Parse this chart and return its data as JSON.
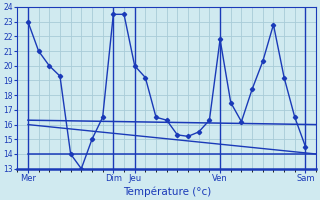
{
  "title": "Température (°c)",
  "background_color": "#d0eaf0",
  "grid_color": "#a8ccd8",
  "line_color": "#1a3ab8",
  "ylim": [
    13,
    24
  ],
  "yticks": [
    13,
    14,
    15,
    16,
    17,
    18,
    19,
    20,
    21,
    22,
    23,
    24
  ],
  "xlim": [
    0,
    28
  ],
  "x_major_ticks": [
    1,
    9,
    11,
    19,
    27
  ],
  "x_major_labels": [
    "Mer",
    "Dim",
    "Jeu",
    "Ven",
    "Sam"
  ],
  "num_minor_cols": 28,
  "series1_x": [
    1,
    2,
    3,
    4,
    5,
    6,
    7,
    8,
    9,
    10,
    11,
    12,
    13,
    14,
    15,
    16,
    17,
    18,
    19,
    20,
    21,
    22,
    23,
    24,
    25,
    26,
    27
  ],
  "series1_y": [
    23,
    21,
    20.0,
    19.3,
    14.0,
    13.0,
    15.0,
    16.5,
    23.5,
    23.5,
    20.0,
    19.2,
    16.5,
    16.3,
    15.3,
    15.2,
    15.5,
    16.3,
    21.8,
    17.5,
    16.2,
    18.4,
    20.3,
    22.8,
    19.2,
    16.5,
    14.5
  ],
  "series2_x": [
    1,
    28
  ],
  "series2_y": [
    16.3,
    16.0
  ],
  "series3_x": [
    1,
    28
  ],
  "series3_y": [
    16.0,
    14.0
  ],
  "series4_x": [
    1,
    28
  ],
  "series4_y": [
    14.0,
    14.0
  ]
}
